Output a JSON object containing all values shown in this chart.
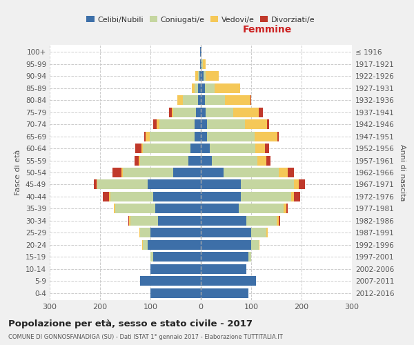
{
  "age_groups": [
    "0-4",
    "5-9",
    "10-14",
    "15-19",
    "20-24",
    "25-29",
    "30-34",
    "35-39",
    "40-44",
    "45-49",
    "50-54",
    "55-59",
    "60-64",
    "65-69",
    "70-74",
    "75-79",
    "80-84",
    "85-89",
    "90-94",
    "95-99",
    "100+"
  ],
  "birth_years": [
    "2012-2016",
    "2007-2011",
    "2002-2006",
    "1997-2001",
    "1992-1996",
    "1987-1991",
    "1982-1986",
    "1977-1981",
    "1972-1976",
    "1967-1971",
    "1962-1966",
    "1957-1961",
    "1952-1956",
    "1947-1951",
    "1942-1946",
    "1937-1941",
    "1932-1936",
    "1927-1931",
    "1922-1926",
    "1917-1921",
    "≤ 1916"
  ],
  "maschi": {
    "celibi": [
      100,
      120,
      100,
      95,
      105,
      100,
      85,
      90,
      95,
      105,
      55,
      25,
      20,
      12,
      12,
      10,
      6,
      5,
      3,
      2,
      1
    ],
    "coniugati": [
      0,
      0,
      0,
      5,
      10,
      20,
      55,
      80,
      85,
      100,
      100,
      95,
      95,
      90,
      70,
      45,
      30,
      8,
      3,
      0,
      0
    ],
    "vedovi": [
      0,
      0,
      0,
      0,
      2,
      2,
      2,
      2,
      2,
      2,
      3,
      3,
      3,
      8,
      5,
      3,
      10,
      5,
      5,
      0,
      0
    ],
    "divorziati": [
      0,
      0,
      0,
      0,
      0,
      0,
      2,
      0,
      12,
      5,
      18,
      8,
      12,
      3,
      8,
      5,
      0,
      0,
      0,
      0,
      0
    ]
  },
  "femmine": {
    "nubili": [
      95,
      110,
      90,
      95,
      100,
      100,
      90,
      75,
      80,
      80,
      45,
      22,
      18,
      12,
      12,
      10,
      8,
      8,
      5,
      2,
      1
    ],
    "coniugate": [
      0,
      0,
      0,
      5,
      15,
      30,
      60,
      90,
      100,
      105,
      110,
      90,
      90,
      95,
      75,
      55,
      40,
      20,
      5,
      2,
      0
    ],
    "vedove": [
      0,
      0,
      0,
      0,
      2,
      3,
      5,
      5,
      5,
      10,
      18,
      18,
      20,
      45,
      45,
      50,
      50,
      50,
      25,
      5,
      1
    ],
    "divorziate": [
      0,
      0,
      0,
      0,
      0,
      0,
      2,
      2,
      12,
      12,
      12,
      8,
      8,
      3,
      3,
      8,
      2,
      0,
      0,
      0,
      0
    ]
  },
  "colors": {
    "celibi": "#3d6fa8",
    "coniugati": "#c5d6a0",
    "vedovi": "#f5c858",
    "divorziati": "#c0392b"
  },
  "xlim": 300,
  "title": "Popolazione per età, sesso e stato civile - 2017",
  "subtitle": "COMUNE DI GONNOSFANADIGA (SU) - Dati ISTAT 1° gennaio 2017 - Elaborazione TUTTITALIA.IT",
  "bg_color": "#f0f0f0",
  "plot_bg": "#ffffff"
}
